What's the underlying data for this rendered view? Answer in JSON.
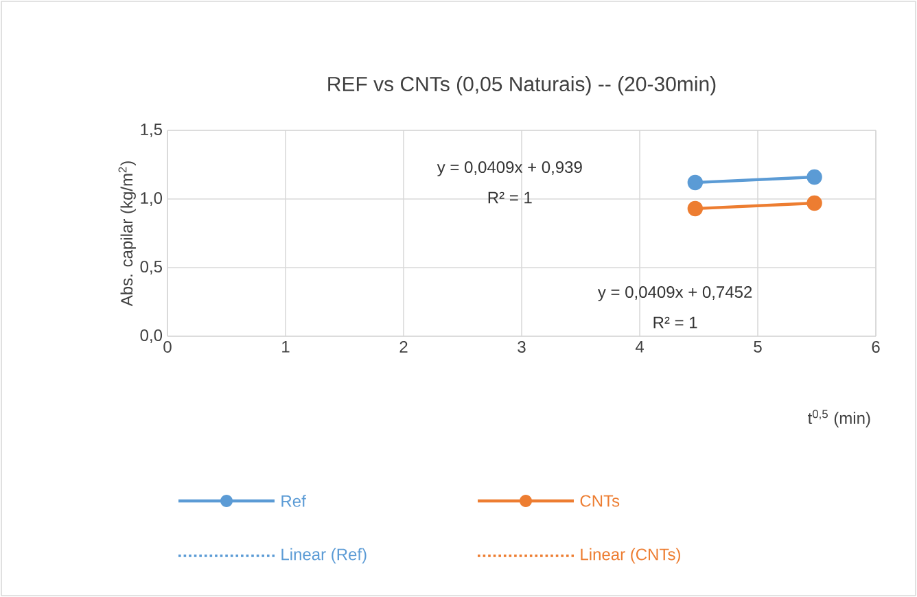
{
  "chart_data": {
    "type": "line",
    "title": "REF vs CNTs (0,05 Naturais) -- (20-30min)",
    "xlabel": "t$^{0,5}$ (min)",
    "ylabel": "Abs. capilar (kg/m$^{2}$)",
    "x": [
      4.47,
      5.48
    ],
    "xlim": [
      0,
      6
    ],
    "xticks": [
      0,
      1,
      2,
      3,
      4,
      5,
      6
    ],
    "ylim": [
      0,
      1.5
    ],
    "yticks": [
      {
        "value": 0,
        "label": "0,0"
      },
      {
        "value": 0.5,
        "label": "0,5"
      },
      {
        "value": 1,
        "label": "1,0"
      },
      {
        "value": 1.5,
        "label": "1,5"
      }
    ],
    "grid": true,
    "legend": "bottom",
    "series": [
      {
        "name": "Ref",
        "color": "#5b9bd5",
        "marker": "circle",
        "line_style": "solid",
        "values": [
          1.12,
          1.16
        ]
      },
      {
        "name": "CNTs",
        "color": "#ed7d31",
        "marker": "circle",
        "line_style": "solid",
        "values": [
          0.93,
          0.97
        ]
      },
      {
        "name": "Linear (Ref)",
        "color": "#5b9bd5",
        "marker": "none",
        "line_style": "dotted",
        "values": [
          null,
          null
        ]
      },
      {
        "name": "Linear (CNTs)",
        "color": "#ed7d31",
        "marker": "none",
        "line_style": "dotted",
        "values": [
          null,
          null
        ]
      }
    ],
    "annotations": [
      "y = 0,0409x + 0,939",
      "R² = 1",
      "y = 0,0409x + 0,7452",
      "R² = 1"
    ]
  }
}
